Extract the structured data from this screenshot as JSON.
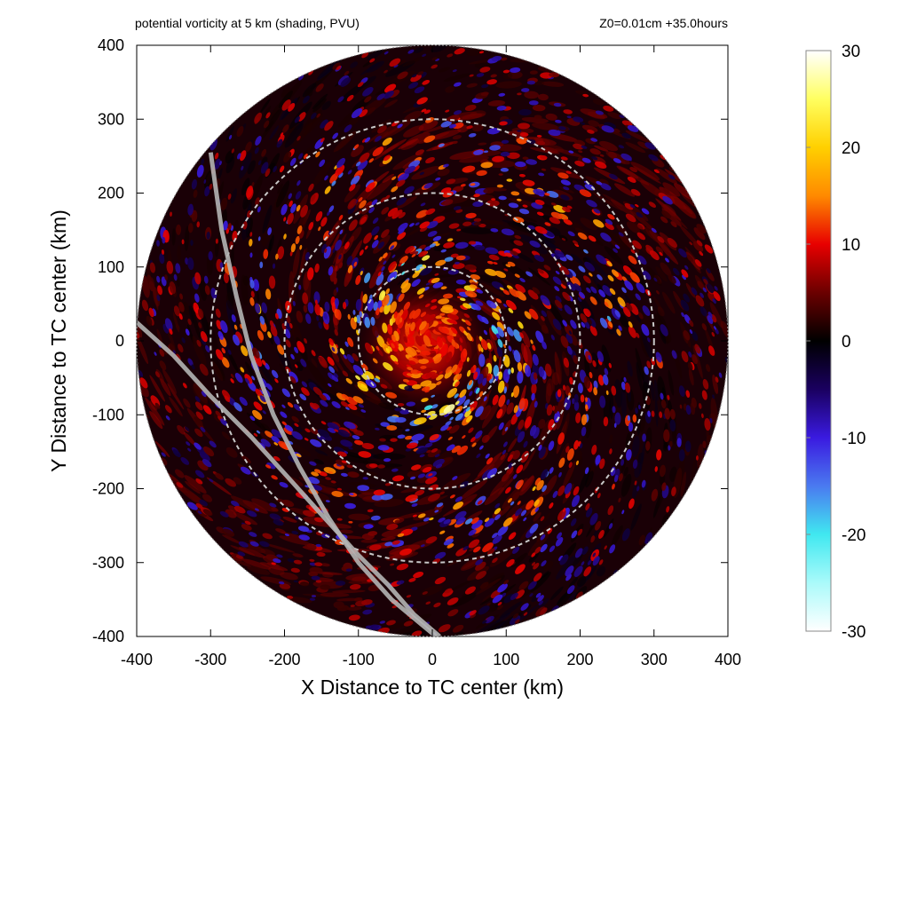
{
  "chart_data": {
    "type": "heatmap",
    "title": "potential vorticity at 5 km (shading, PVU)",
    "subtitle": "Z0=0.01cm  +35.0hours",
    "xlabel": "X Distance to TC center (km)",
    "ylabel": "Y Distance to TC center (km)",
    "xlim": [
      -400,
      400
    ],
    "ylim": [
      -400,
      400
    ],
    "xticks": [
      -400,
      -300,
      -200,
      -100,
      0,
      100,
      200,
      300,
      400
    ],
    "yticks": [
      -400,
      -300,
      -200,
      -100,
      0,
      100,
      200,
      300,
      400
    ],
    "domain_radius_km": 400,
    "range_rings_km": [
      100,
      200,
      300
    ],
    "track_lines": [
      {
        "points": [
          [
            -300,
            255
          ],
          [
            -285,
            150
          ],
          [
            -265,
            60
          ],
          [
            -245,
            -20
          ],
          [
            -215,
            -100
          ],
          [
            -180,
            -170
          ],
          [
            -140,
            -240
          ],
          [
            -100,
            -300
          ],
          [
            -55,
            -350
          ],
          [
            5,
            -400
          ]
        ]
      },
      {
        "points": [
          [
            -400,
            25
          ],
          [
            -350,
            -20
          ],
          [
            -300,
            -75
          ],
          [
            -245,
            -130
          ],
          [
            -195,
            -185
          ],
          [
            -150,
            -235
          ],
          [
            -100,
            -290
          ],
          [
            -60,
            -330
          ],
          [
            -25,
            -370
          ],
          [
            10,
            -400
          ]
        ]
      }
    ],
    "colorbar": {
      "min": -30,
      "max": 30,
      "ticks": [
        30,
        20,
        10,
        0,
        -10,
        -20,
        -30
      ],
      "colors": {
        "30": "#ffffff",
        "25": "#ffff60",
        "20": "#ffd000",
        "15": "#ff8a00",
        "10": "#e80000",
        "5": "#6b0000",
        "0": "#000000",
        "-5": "#1a0060",
        "-10": "#3a1ae0",
        "-15": "#4a7af0",
        "-20": "#40e8f0",
        "-30": "#ffffff"
      }
    },
    "legend_placement": "right"
  },
  "colors": {
    "ring": "#c8c8c8",
    "track": "#b4b4b4"
  }
}
